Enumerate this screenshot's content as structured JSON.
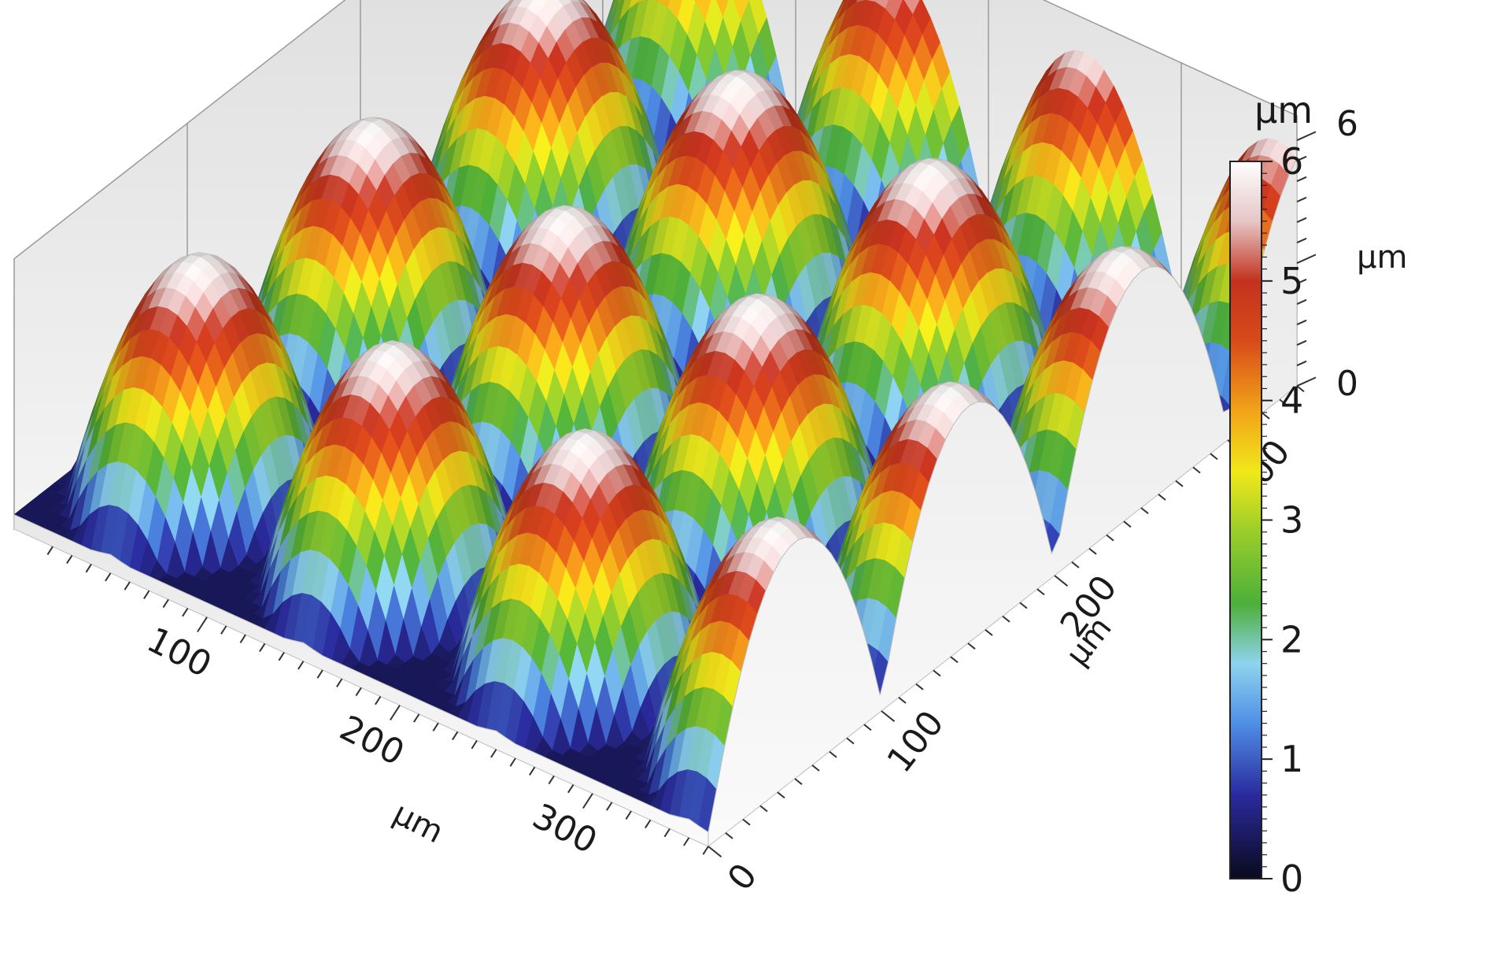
{
  "chart_data": {
    "type": "surface3d",
    "title": "",
    "description_of_surface": "periodic array of dome-shaped microlenses",
    "x_axis": {
      "unit": "µm",
      "tick_labels": [
        "100",
        "200",
        "300"
      ],
      "ticks": [
        100,
        200,
        300
      ],
      "range": [
        0,
        360
      ]
    },
    "y_axis": {
      "unit": "µm",
      "tick_labels": [
        "0",
        "100",
        "200",
        "300"
      ],
      "ticks": [
        0,
        100,
        200,
        300
      ],
      "range": [
        0,
        340
      ]
    },
    "z_axis": {
      "unit": "µm",
      "tick_labels": [
        "6",
        "0"
      ],
      "ticks": [
        6,
        0
      ],
      "range": [
        0,
        6
      ]
    },
    "colorbar": {
      "unit": "µm",
      "tick_labels": [
        "0",
        "1",
        "2",
        "3",
        "4",
        "5",
        "6"
      ],
      "ticks": [
        0,
        1,
        2,
        3,
        4,
        5,
        6
      ],
      "range": [
        0,
        6
      ],
      "colormap": [
        {
          "value": 0.0,
          "color": "#0a0a1e"
        },
        {
          "value": 0.7,
          "color": "#2a2a9e"
        },
        {
          "value": 1.3,
          "color": "#4f8fe6"
        },
        {
          "value": 1.8,
          "color": "#8fd3ee"
        },
        {
          "value": 2.3,
          "color": "#4caf3a"
        },
        {
          "value": 2.9,
          "color": "#9acd2a"
        },
        {
          "value": 3.4,
          "color": "#f0e81a"
        },
        {
          "value": 3.9,
          "color": "#f2a51a"
        },
        {
          "value": 4.5,
          "color": "#d84a1a"
        },
        {
          "value": 5.0,
          "color": "#c2321e"
        },
        {
          "value": 5.5,
          "color": "#e6c6c6"
        },
        {
          "value": 6.0,
          "color": "#ffffff"
        }
      ]
    },
    "lens_peak_height": 6,
    "lens_pitch": 100
  }
}
